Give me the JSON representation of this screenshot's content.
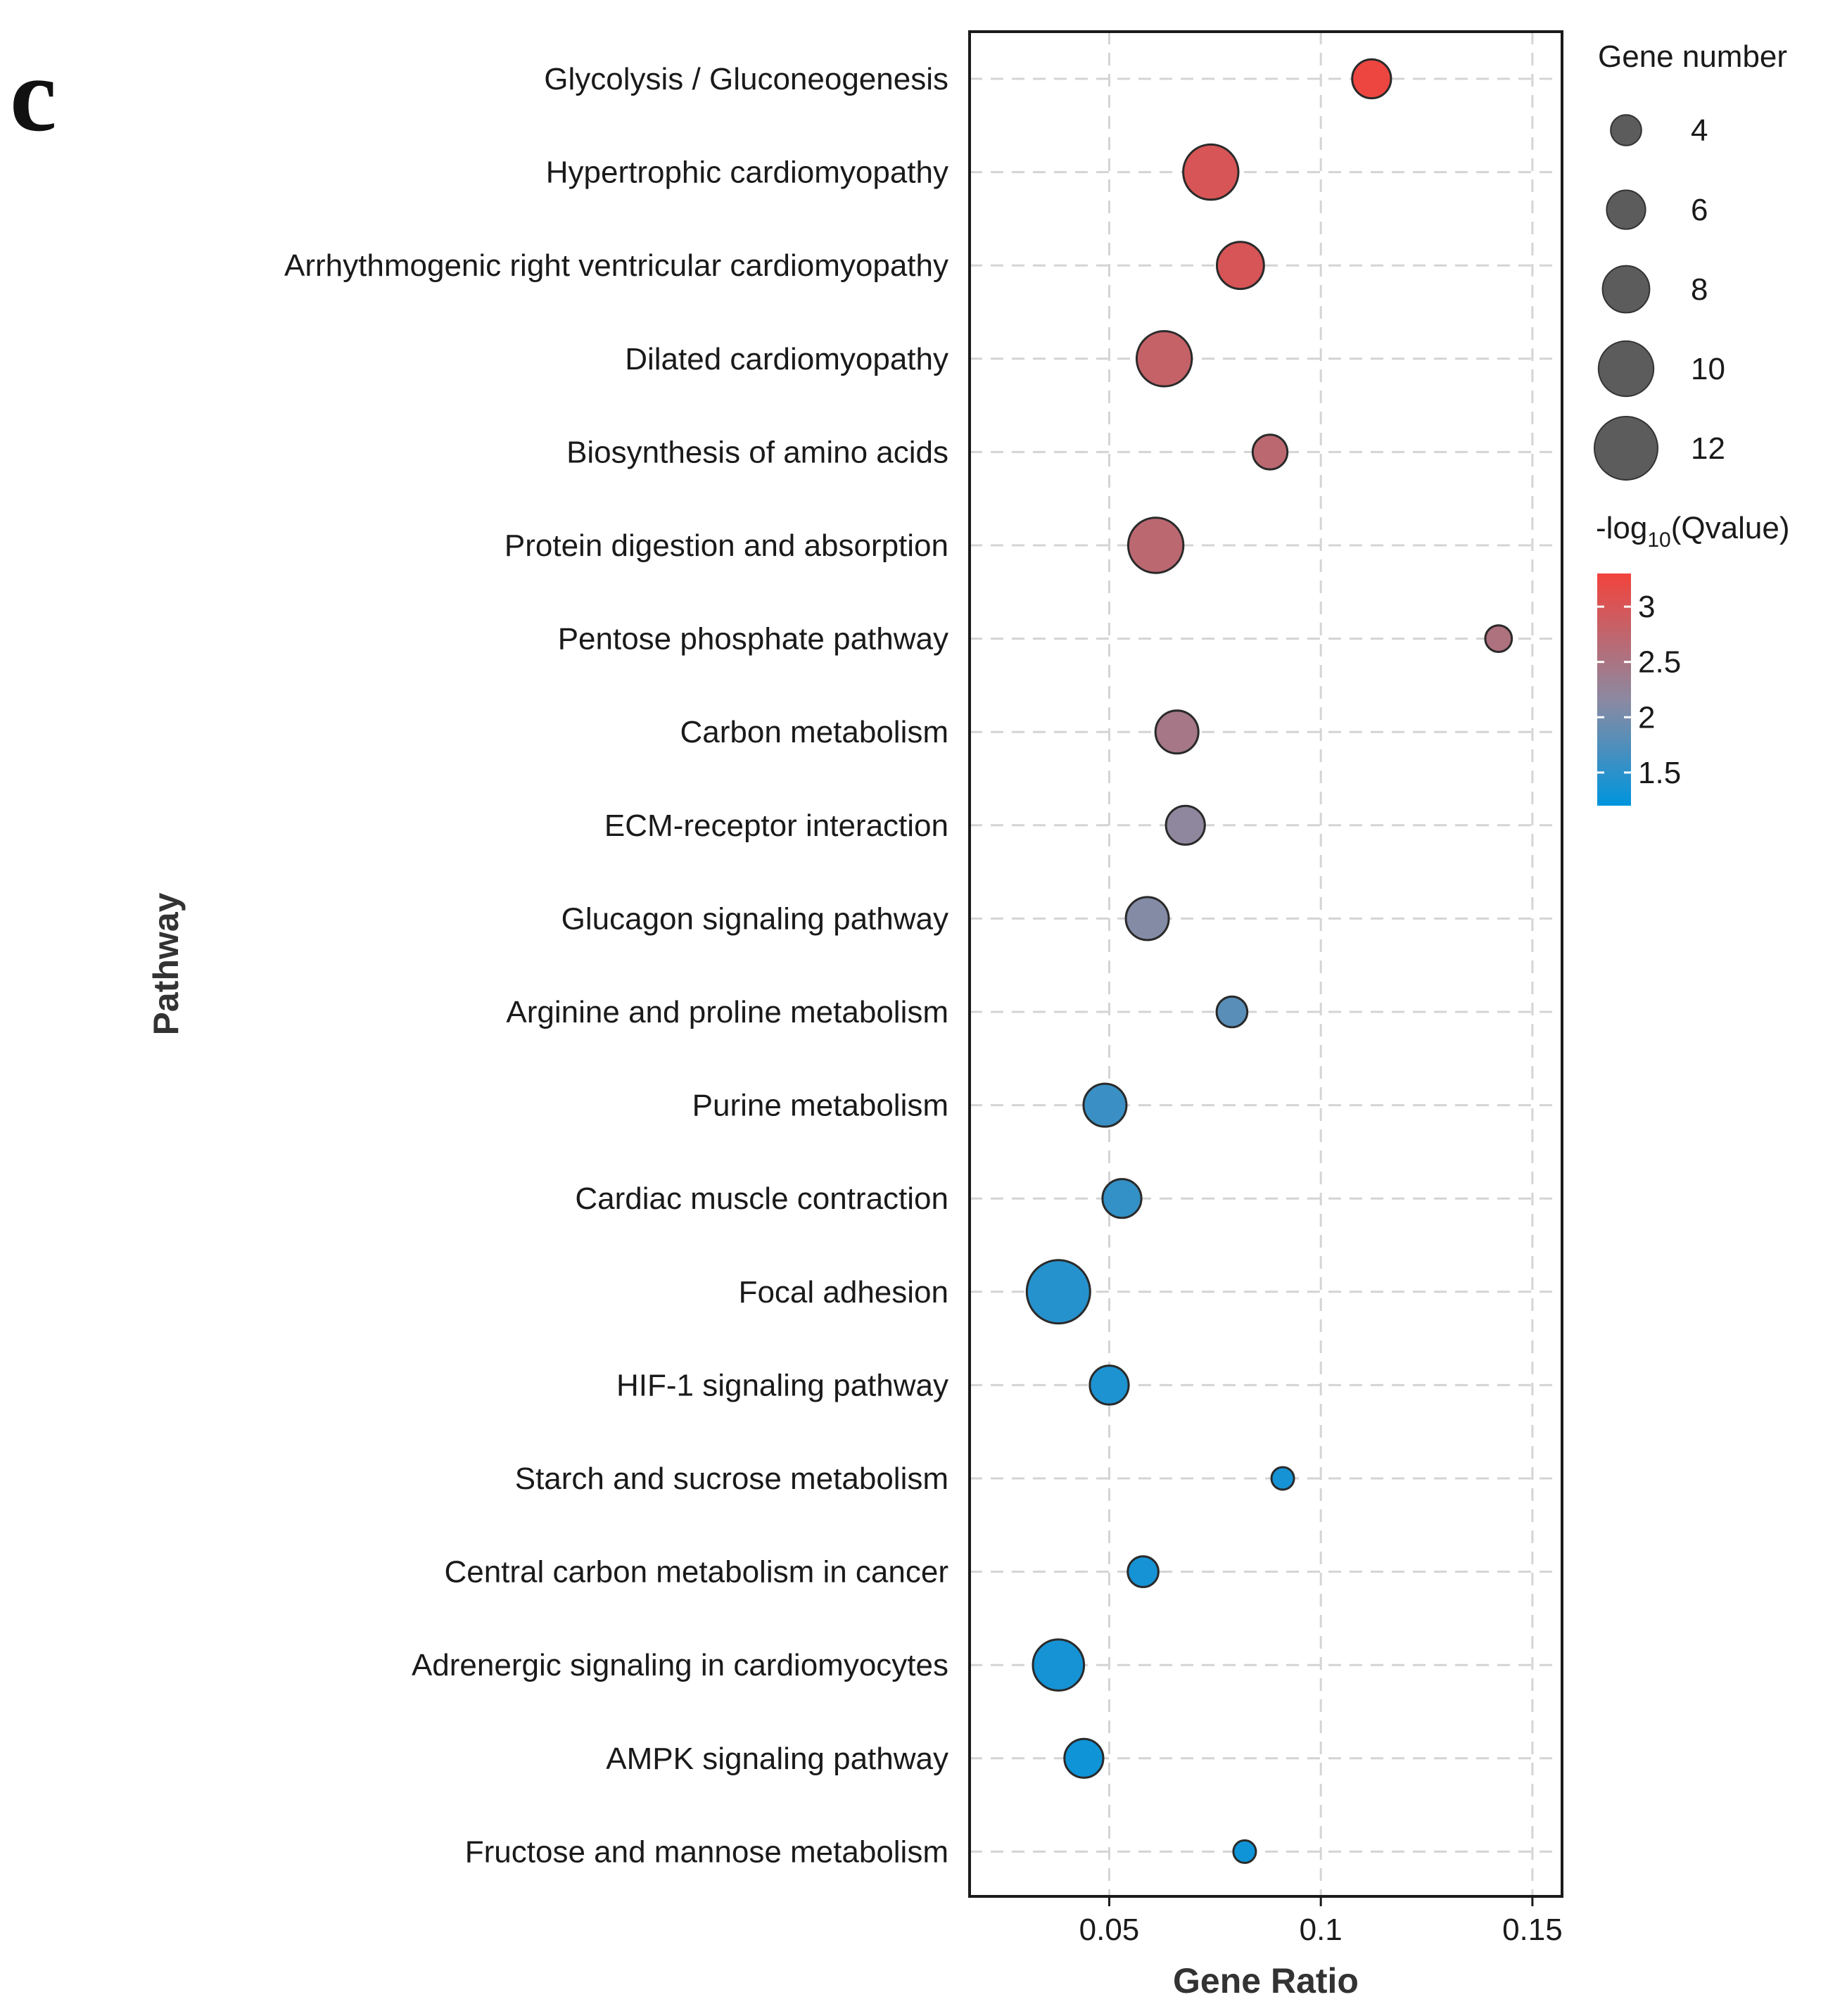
{
  "panel_label": "c",
  "chart_data": {
    "type": "scatter",
    "xlabel": "Gene Ratio",
    "ylabel": "Pathway",
    "xlim": [
      0.017,
      0.157
    ],
    "x_ticks": [
      {
        "value": 0.05,
        "label": "0.05"
      },
      {
        "value": 0.1,
        "label": "0.1"
      },
      {
        "value": 0.15,
        "label": "0.15"
      }
    ],
    "grid": true,
    "points": [
      {
        "pathway": "Glycolysis / Gluconeogenesis",
        "gene_ratio": 0.112,
        "gene_number": 6,
        "neg_log10_q": 3.25
      },
      {
        "pathway": "Hypertrophic cardiomyopathy",
        "gene_ratio": 0.074,
        "gene_number": 10,
        "neg_log10_q": 3.0
      },
      {
        "pathway": "Arrhythmogenic right ventricular cardiomyopathy",
        "gene_ratio": 0.081,
        "gene_number": 8,
        "neg_log10_q": 3.0
      },
      {
        "pathway": "Dilated cardiomyopathy",
        "gene_ratio": 0.063,
        "gene_number": 10,
        "neg_log10_q": 2.8
      },
      {
        "pathway": "Biosynthesis of amino acids",
        "gene_ratio": 0.088,
        "gene_number": 5,
        "neg_log10_q": 2.7
      },
      {
        "pathway": "Protein digestion and absorption",
        "gene_ratio": 0.061,
        "gene_number": 10,
        "neg_log10_q": 2.7
      },
      {
        "pathway": "Pentose phosphate pathway",
        "gene_ratio": 0.142,
        "gene_number": 3,
        "neg_log10_q": 2.55
      },
      {
        "pathway": "Carbon metabolism",
        "gene_ratio": 0.066,
        "gene_number": 7,
        "neg_log10_q": 2.45
      },
      {
        "pathway": "ECM-receptor interaction",
        "gene_ratio": 0.068,
        "gene_number": 6,
        "neg_log10_q": 2.2
      },
      {
        "pathway": "Glucagon signaling pathway",
        "gene_ratio": 0.059,
        "gene_number": 7,
        "neg_log10_q": 2.1
      },
      {
        "pathway": "Arginine and proline metabolism",
        "gene_ratio": 0.079,
        "gene_number": 4,
        "neg_log10_q": 1.8
      },
      {
        "pathway": "Purine metabolism",
        "gene_ratio": 0.049,
        "gene_number": 7,
        "neg_log10_q": 1.6
      },
      {
        "pathway": "Cardiac muscle contraction",
        "gene_ratio": 0.053,
        "gene_number": 6,
        "neg_log10_q": 1.55
      },
      {
        "pathway": "Focal adhesion",
        "gene_ratio": 0.038,
        "gene_number": 12,
        "neg_log10_q": 1.45
      },
      {
        "pathway": "HIF-1 signaling pathway",
        "gene_ratio": 0.05,
        "gene_number": 6,
        "neg_log10_q": 1.4
      },
      {
        "pathway": "Starch and sucrose metabolism",
        "gene_ratio": 0.091,
        "gene_number": 2,
        "neg_log10_q": 1.35
      },
      {
        "pathway": "Central carbon metabolism in cancer",
        "gene_ratio": 0.058,
        "gene_number": 4,
        "neg_log10_q": 1.35
      },
      {
        "pathway": "Adrenergic signaling in cardiomyocytes",
        "gene_ratio": 0.038,
        "gene_number": 9,
        "neg_log10_q": 1.35
      },
      {
        "pathway": "AMPK signaling pathway",
        "gene_ratio": 0.044,
        "gene_number": 6,
        "neg_log10_q": 1.3
      },
      {
        "pathway": "Fructose and mannose metabolism",
        "gene_ratio": 0.082,
        "gene_number": 2,
        "neg_log10_q": 1.3
      }
    ],
    "size_legend": {
      "title": "Gene number",
      "values": [
        4,
        6,
        8,
        10,
        12
      ],
      "labels": [
        "4",
        "6",
        "8",
        "10",
        "12"
      ]
    },
    "color_legend": {
      "title_prefix": "-log",
      "title_subscript": "10",
      "title_suffix": "(Qvalue)",
      "min": 1.2,
      "max": 3.3,
      "ticks": [
        {
          "value": 1.5,
          "label": "1.5"
        },
        {
          "value": 2,
          "label": "2"
        },
        {
          "value": 2.5,
          "label": "2.5"
        },
        {
          "value": 3,
          "label": "3"
        }
      ],
      "low_color": "#0095dd",
      "mid_color": "#8a8aa2",
      "high_color": "#f2433c"
    }
  }
}
